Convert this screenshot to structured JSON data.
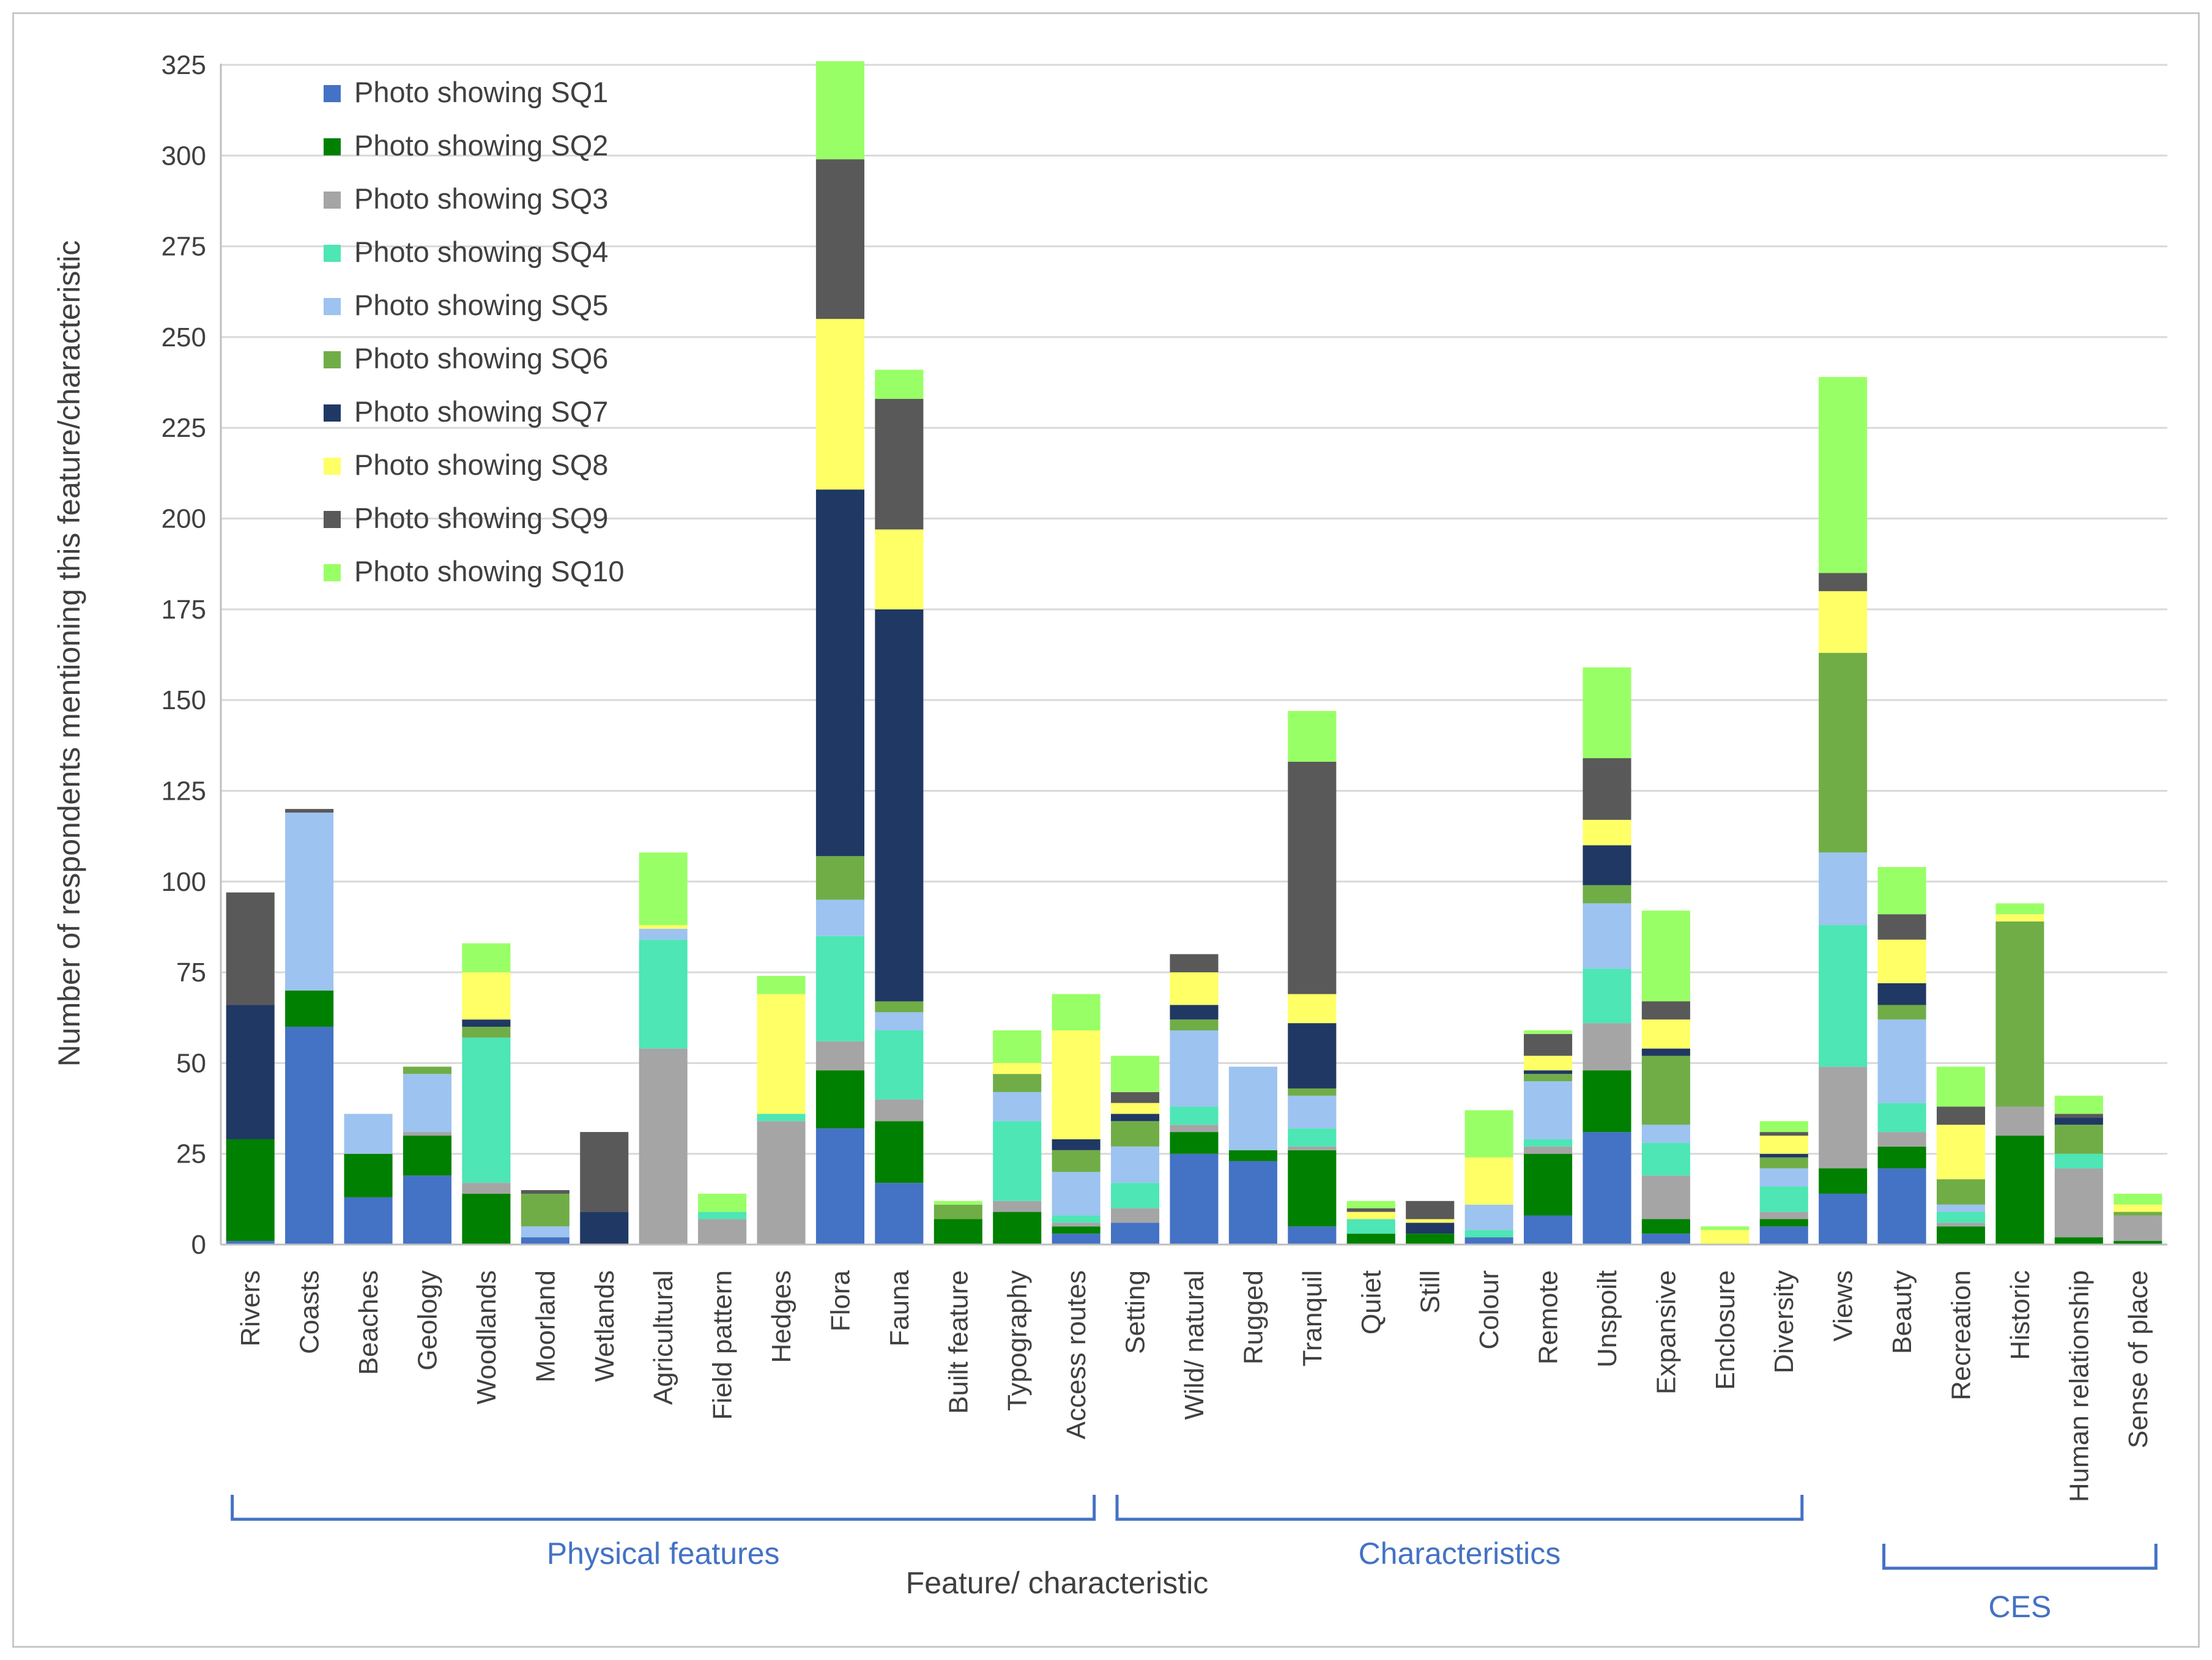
{
  "chart_data": {
    "type": "bar",
    "stacked": true,
    "title": "",
    "xlabel": "Feature/ characteristic",
    "ylabel": "Number of respondents mentioning this feature/characteristic",
    "ylim": [
      0,
      325
    ],
    "yticks": [
      0,
      25,
      50,
      75,
      100,
      125,
      150,
      175,
      200,
      225,
      250,
      275,
      300,
      325
    ],
    "grid": true,
    "legend_position": "top-left",
    "categories": [
      "Rivers",
      "Coasts",
      "Beaches",
      "Geology",
      "Woodlands",
      "Moorland",
      "Wetlands",
      "Agricultural",
      "Field pattern",
      "Hedges",
      "Flora",
      "Fauna",
      "Built feature",
      "Typography",
      "Access routes",
      "Setting",
      "Wild/ natural",
      "Rugged",
      "Tranquil",
      "Quiet",
      "Still",
      "Colour",
      "Remote",
      "Unspoilt",
      "Expansive",
      "Enclosure",
      "Diversity",
      "Views",
      "Beauty",
      "Recreation",
      "Historic",
      "Human relationship",
      "Sense of place"
    ],
    "series": [
      {
        "name": "Photo showing SQ1",
        "color": "#4472c4",
        "values": [
          1,
          60,
          13,
          19,
          0,
          2,
          0,
          0,
          0,
          0,
          32,
          17,
          0,
          0,
          3,
          6,
          25,
          23,
          5,
          0,
          0,
          2,
          8,
          31,
          3,
          0,
          5,
          14,
          21,
          0,
          0,
          0,
          0
        ]
      },
      {
        "name": "Photo showing SQ2",
        "color": "#008000",
        "values": [
          28,
          10,
          12,
          11,
          14,
          0,
          0,
          0,
          0,
          0,
          16,
          17,
          7,
          9,
          2,
          0,
          6,
          3,
          21,
          3,
          3,
          0,
          17,
          17,
          4,
          0,
          2,
          7,
          6,
          5,
          30,
          2,
          1
        ]
      },
      {
        "name": "Photo showing SQ3",
        "color": "#a5a5a5",
        "values": [
          0,
          0,
          0,
          1,
          3,
          0,
          0,
          54,
          7,
          34,
          8,
          6,
          0,
          3,
          1,
          4,
          2,
          0,
          1,
          0,
          0,
          0,
          2,
          13,
          12,
          0,
          2,
          28,
          4,
          1,
          8,
          19,
          7
        ]
      },
      {
        "name": "Photo showing SQ4",
        "color": "#4de6b4",
        "values": [
          0,
          0,
          0,
          0,
          40,
          0,
          0,
          30,
          2,
          2,
          29,
          19,
          0,
          22,
          2,
          7,
          5,
          0,
          5,
          4,
          0,
          2,
          2,
          15,
          9,
          0,
          7,
          39,
          8,
          3,
          0,
          4,
          0
        ]
      },
      {
        "name": "Photo showing SQ5",
        "color": "#9dc3f0",
        "values": [
          0,
          49,
          11,
          16,
          0,
          3,
          0,
          3,
          0,
          0,
          10,
          5,
          0,
          8,
          12,
          10,
          21,
          23,
          9,
          0,
          0,
          7,
          16,
          18,
          5,
          0,
          5,
          20,
          23,
          2,
          0,
          0,
          0
        ]
      },
      {
        "name": "Photo showing SQ6",
        "color": "#70ad47",
        "values": [
          0,
          0,
          0,
          2,
          3,
          9,
          0,
          0,
          0,
          0,
          12,
          3,
          4,
          5,
          6,
          7,
          3,
          0,
          2,
          0,
          0,
          0,
          2,
          5,
          19,
          0,
          3,
          55,
          4,
          7,
          51,
          8,
          1
        ]
      },
      {
        "name": "Photo showing SQ7",
        "color": "#203864",
        "values": [
          37,
          0,
          0,
          0,
          2,
          0,
          9,
          0,
          0,
          0,
          101,
          108,
          0,
          0,
          3,
          2,
          4,
          0,
          18,
          0,
          3,
          0,
          1,
          11,
          2,
          0,
          1,
          0,
          6,
          0,
          0,
          2,
          0
        ]
      },
      {
        "name": "Photo showing SQ8",
        "color": "#ffff66",
        "values": [
          0,
          0,
          0,
          0,
          13,
          0,
          0,
          1,
          0,
          33,
          47,
          22,
          0,
          3,
          30,
          3,
          9,
          0,
          8,
          2,
          1,
          13,
          4,
          7,
          8,
          4,
          5,
          17,
          12,
          15,
          2,
          0,
          2
        ]
      },
      {
        "name": "Photo showing SQ9",
        "color": "#595959",
        "values": [
          31,
          1,
          0,
          0,
          0,
          1,
          22,
          0,
          0,
          0,
          44,
          36,
          0,
          0,
          0,
          3,
          5,
          0,
          64,
          1,
          5,
          0,
          6,
          17,
          5,
          0,
          1,
          5,
          7,
          5,
          0,
          1,
          0
        ]
      },
      {
        "name": "Photo showing SQ10",
        "color": "#99ff66",
        "values": [
          0,
          0,
          0,
          0,
          8,
          0,
          0,
          20,
          5,
          5,
          27,
          8,
          1,
          9,
          10,
          10,
          0,
          0,
          14,
          2,
          0,
          13,
          1,
          25,
          25,
          1,
          3,
          54,
          13,
          11,
          3,
          5,
          3
        ]
      }
    ],
    "groups": [
      {
        "label": "Physical features",
        "from": "Rivers",
        "to": "Access routes",
        "color": "#4472c4"
      },
      {
        "label": "Characteristics",
        "from": "Setting",
        "to": "Diversity",
        "color": "#4472c4"
      },
      {
        "label": "CES",
        "from": "Beauty",
        "to": "Sense of place",
        "color": "#4472c4"
      }
    ]
  }
}
